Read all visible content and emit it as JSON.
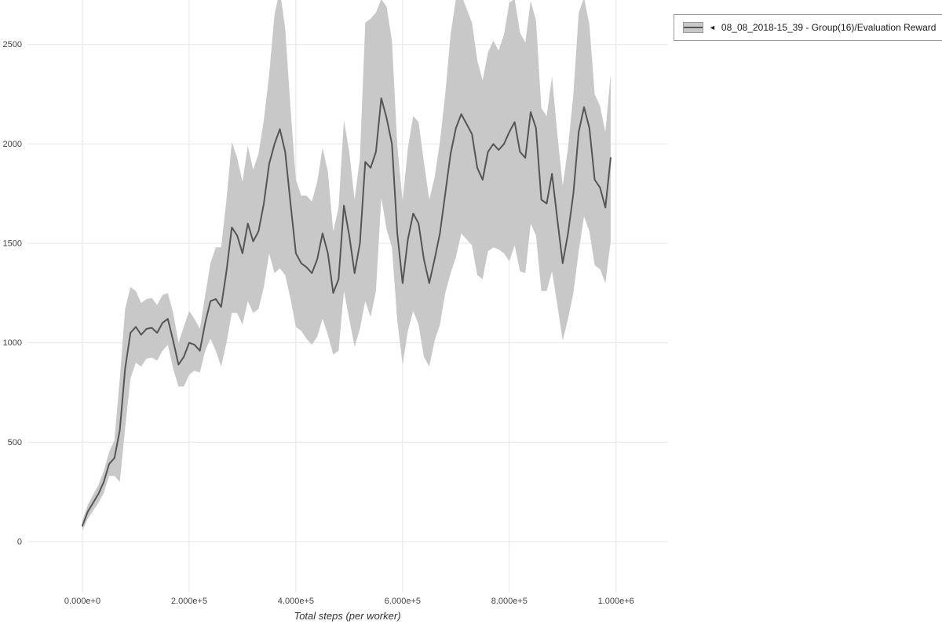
{
  "page": {
    "background": "#ffffff"
  },
  "chart_data": {
    "type": "line",
    "title": "",
    "xlabel": "Total steps (per worker)",
    "ylabel": "",
    "grid": true,
    "legend": {
      "position": "top-right",
      "arrow": "◄",
      "label": "08_08_2018-15_39 - Group(16)/Evaluation Reward"
    },
    "x_axis": {
      "range": [
        -103000,
        1096000
      ],
      "tick_values": [
        0,
        200000,
        400000,
        600000,
        800000,
        1000000
      ],
      "tick_labels": [
        "0.000e+0",
        "2.000e+5",
        "4.000e+5",
        "6.000e+5",
        "8.000e+5",
        "1.000e+6"
      ]
    },
    "y_axis": {
      "range": [
        -257,
        2724
      ],
      "tick_values": [
        0,
        500,
        1000,
        1500,
        2000,
        2500
      ],
      "tick_labels": [
        "0",
        "500",
        "1000",
        "1500",
        "2000",
        "2500"
      ]
    },
    "colors": {
      "line": "#555555",
      "band": "#c8c8c8",
      "grid": "#e6e6e6",
      "tick_text": "#444444",
      "axis_label": "#333333",
      "legend_border": "#9a9a9a"
    },
    "series": [
      {
        "name": "08_08_2018-15_39 - Group(16)/Evaluation Reward",
        "x_start": 0,
        "x_interval": 10000,
        "mean": [
          80,
          150,
          195,
          240,
          300,
          390,
          420,
          560,
          870,
          1050,
          1080,
          1040,
          1070,
          1075,
          1050,
          1100,
          1120,
          1010,
          890,
          930,
          1000,
          990,
          960,
          1100,
          1210,
          1220,
          1180,
          1360,
          1580,
          1540,
          1450,
          1600,
          1510,
          1560,
          1700,
          1900,
          2000,
          2075,
          1960,
          1700,
          1450,
          1400,
          1380,
          1350,
          1420,
          1550,
          1450,
          1250,
          1320,
          1690,
          1540,
          1350,
          1500,
          1910,
          1880,
          1960,
          2230,
          2130,
          2000,
          1550,
          1300,
          1520,
          1650,
          1600,
          1420,
          1300,
          1420,
          1550,
          1750,
          1950,
          2080,
          2150,
          2100,
          2050,
          1880,
          1820,
          1960,
          2000,
          1970,
          2000,
          2060,
          2110,
          1960,
          1930,
          2160,
          2080,
          1720,
          1700,
          1850,
          1620,
          1400,
          1550,
          1750,
          2060,
          2185,
          2080,
          1820,
          1780,
          1680,
          1930
        ],
        "band_halfwidth": [
          25,
          35,
          40,
          45,
          55,
          60,
          90,
          260,
          300,
          230,
          180,
          160,
          150,
          150,
          140,
          140,
          130,
          140,
          110,
          150,
          160,
          130,
          110,
          140,
          190,
          260,
          300,
          360,
          430,
          390,
          360,
          390,
          360,
          390,
          420,
          450,
          650,
          700,
          620,
          480,
          370,
          340,
          360,
          360,
          390,
          430,
          410,
          310,
          360,
          430,
          420,
          370,
          430,
          700,
          750,
          700,
          500,
          560,
          520,
          440,
          410,
          460,
          490,
          510,
          490,
          420,
          410,
          460,
          500,
          600,
          650,
          600,
          580,
          560,
          540,
          500,
          500,
          520,
          500,
          550,
          650,
          620,
          600,
          580,
          560,
          540,
          460,
          440,
          490,
          430,
          390,
          430,
          500,
          600,
          550,
          520,
          430,
          410,
          380,
          420
        ]
      }
    ]
  }
}
